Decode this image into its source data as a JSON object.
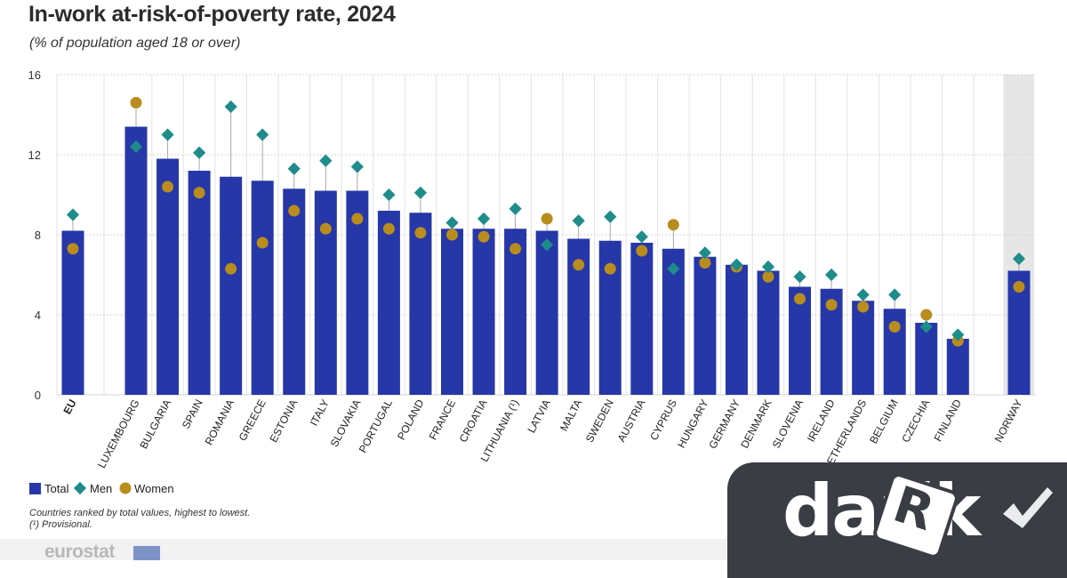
{
  "header": {
    "title": "In-work at-risk-of-poverty rate, 2024",
    "subtitle": "(% of population aged 18 or over)"
  },
  "legend": {
    "items": [
      {
        "label": "Total",
        "shape": "square",
        "color": "#2637a8"
      },
      {
        "label": "Men",
        "shape": "diamond",
        "color": "#1e8c8a"
      },
      {
        "label": "Women",
        "shape": "circle",
        "color": "#b88d1d"
      }
    ]
  },
  "notes": {
    "line1": "Countries ranked by total values, highest to lowest.",
    "line2": "(¹) Provisional."
  },
  "footer": {
    "source_logo": "eurostat",
    "watermark_logo": "darik",
    "watermark_die_letter": "R"
  },
  "colors": {
    "bar": "#2637a8",
    "men": "#1e8c8a",
    "women": "#b88d1d",
    "grid": "#d3d3d3",
    "separator": "#e3e3e3",
    "norway_bg": "#e6e6e6",
    "range_line": "#a8a8a8"
  },
  "chart_data": {
    "type": "bar",
    "title": "In-work at-risk-of-poverty rate, 2024",
    "subtitle": "(% of population aged 18 or over)",
    "xlabel": "",
    "ylabel": "",
    "ylim": [
      0,
      16
    ],
    "yticks": [
      0,
      4,
      8,
      12,
      16
    ],
    "grid": true,
    "legend_position": "bottom-left",
    "categories": [
      "EU",
      "LUXEMBOURG",
      "BULGARIA",
      "SPAIN",
      "ROMANIA",
      "GREECE",
      "ESTONIA",
      "ITALY",
      "SLOVAKIA",
      "PORTUGAL",
      "POLAND",
      "FRANCE",
      "CROATIA",
      "LITHUANIA (¹)",
      "LATVIA",
      "MALTA",
      "SWEDEN",
      "AUSTRIA",
      "CYPRUS",
      "HUNGARY",
      "GERMANY",
      "DENMARK",
      "SLOVENIA",
      "IRELAND",
      "NETHERLANDS",
      "BELGIUM",
      "CZECHIA",
      "FINLAND",
      "NORWAY"
    ],
    "series": [
      {
        "name": "Total",
        "kind": "bar",
        "values": [
          8.2,
          13.4,
          11.8,
          11.2,
          10.9,
          10.7,
          10.3,
          10.2,
          10.2,
          9.2,
          9.1,
          8.3,
          8.3,
          8.3,
          8.2,
          7.8,
          7.7,
          7.6,
          7.3,
          6.9,
          6.5,
          6.2,
          5.4,
          5.3,
          4.7,
          4.3,
          3.6,
          2.8,
          6.2
        ]
      },
      {
        "name": "Men",
        "kind": "diamond",
        "values": [
          9.0,
          12.4,
          13.0,
          12.1,
          14.4,
          13.0,
          11.3,
          11.7,
          11.4,
          10.0,
          10.1,
          8.6,
          8.8,
          9.3,
          7.5,
          8.7,
          8.9,
          7.9,
          6.3,
          7.1,
          6.5,
          6.4,
          5.9,
          6.0,
          5.0,
          5.0,
          3.4,
          3.0,
          6.8
        ]
      },
      {
        "name": "Women",
        "kind": "circle",
        "values": [
          7.3,
          14.6,
          10.4,
          10.1,
          6.3,
          7.6,
          9.2,
          8.3,
          8.8,
          8.3,
          8.1,
          8.0,
          7.9,
          7.3,
          8.8,
          6.5,
          6.3,
          7.2,
          8.5,
          6.6,
          6.4,
          5.9,
          4.8,
          4.5,
          4.4,
          3.4,
          4.0,
          2.7,
          5.4
        ]
      }
    ]
  }
}
